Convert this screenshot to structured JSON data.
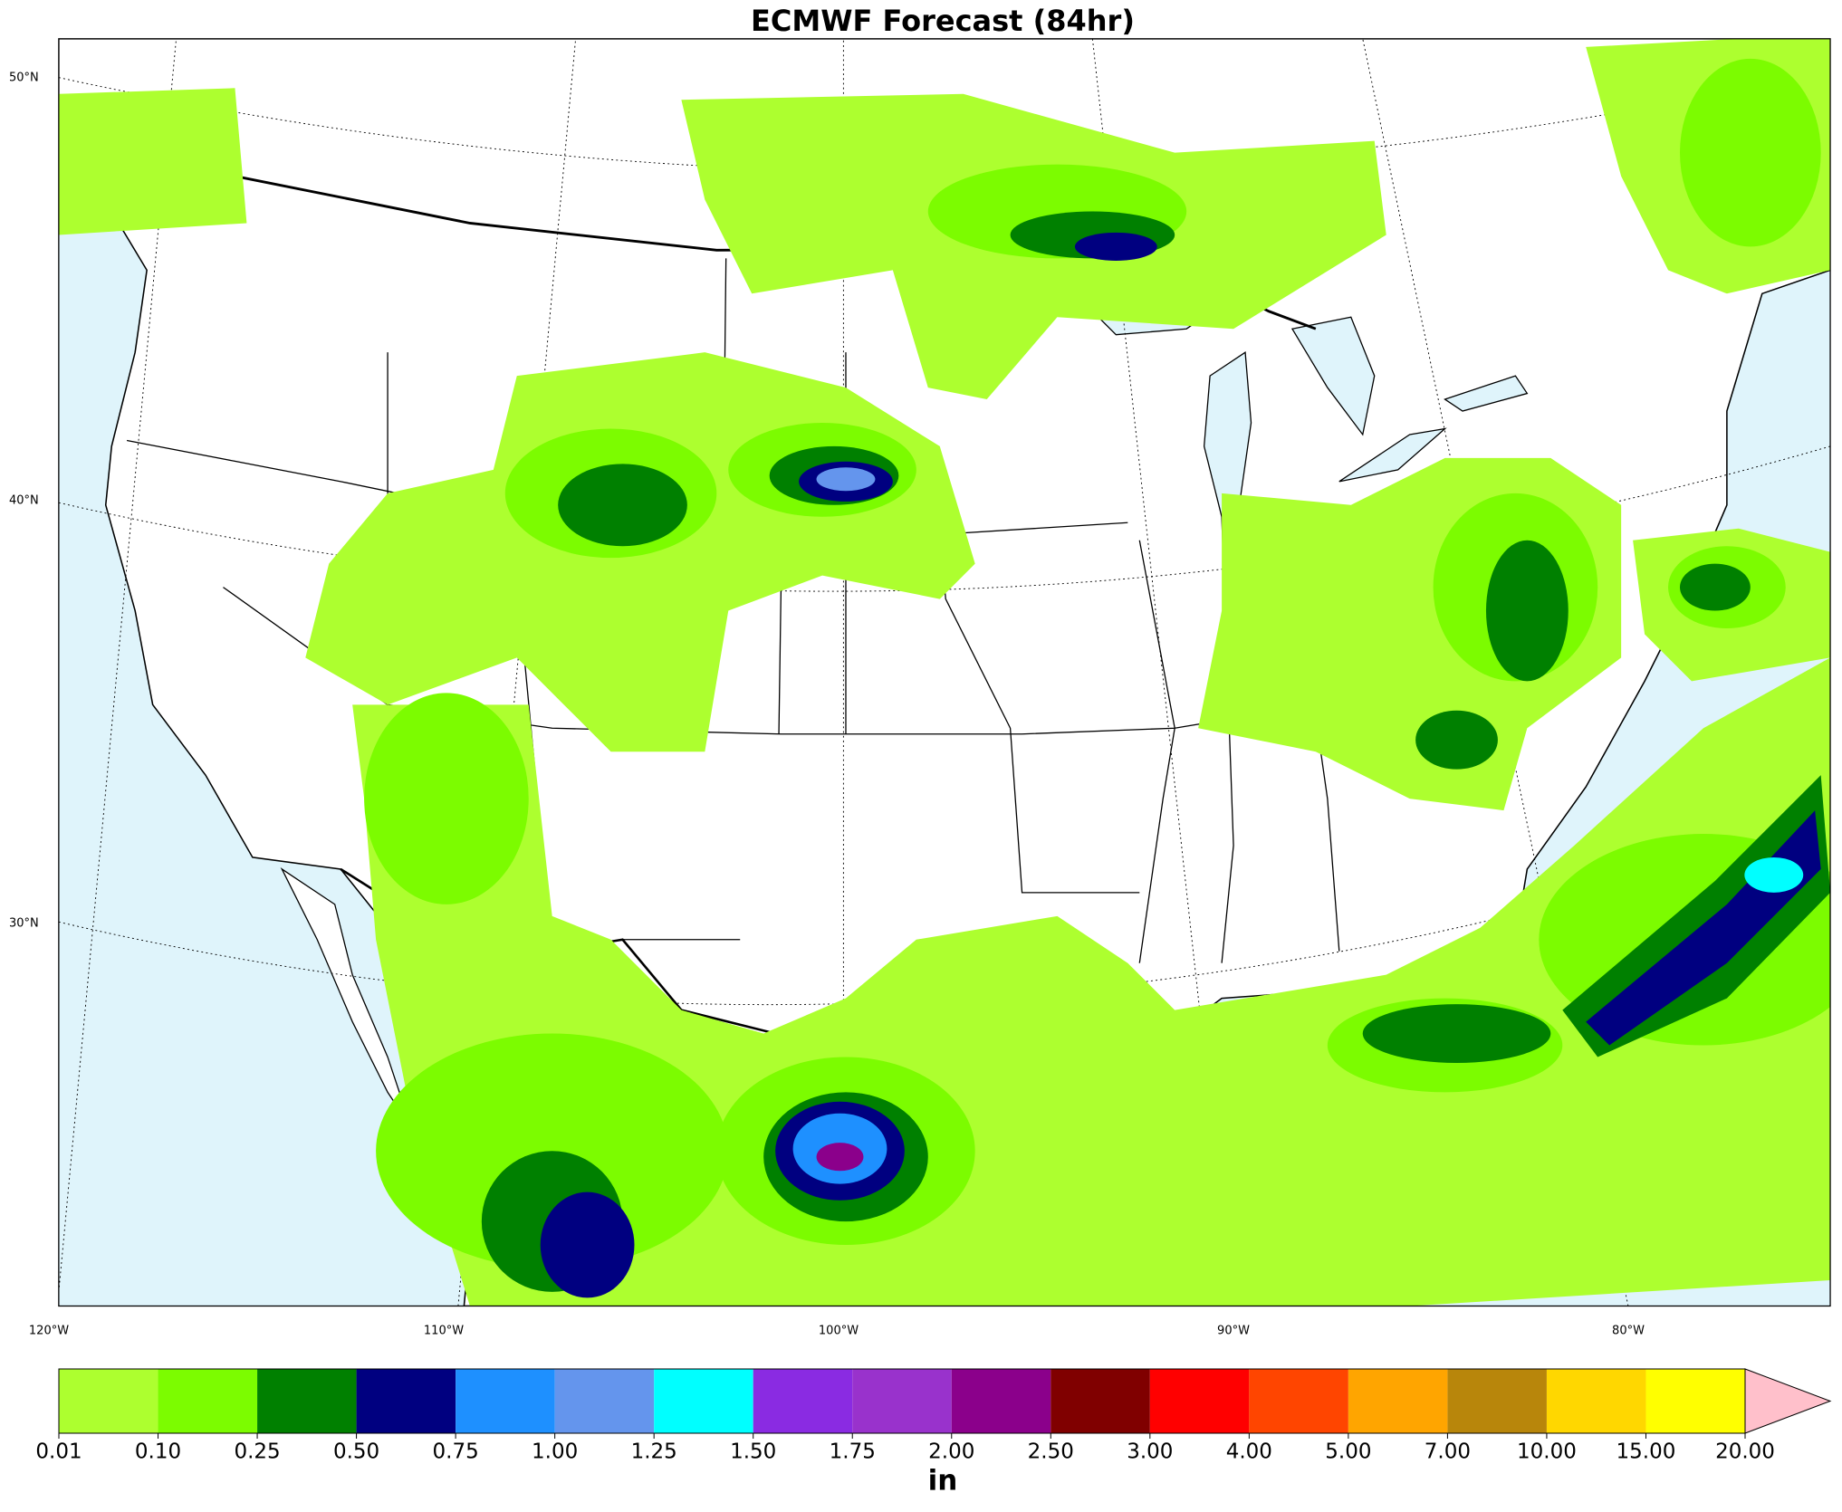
{
  "title": "ECMWF Forecast (84hr)",
  "lat_labels": [
    {
      "value": 50,
      "label": "50°N"
    },
    {
      "value": 40,
      "label": "40°N"
    },
    {
      "value": 30,
      "label": "30°N"
    }
  ],
  "lon_labels": [
    {
      "value": -120,
      "label": "120°W"
    },
    {
      "value": -110,
      "label": "110°W"
    },
    {
      "value": -100,
      "label": "100°W"
    },
    {
      "value": -90,
      "label": "90°W"
    },
    {
      "value": -80,
      "label": "80°W"
    }
  ],
  "colorbar": {
    "unit": "in",
    "levels": [
      {
        "value": 0.01,
        "label": "0.01"
      },
      {
        "value": 0.1,
        "label": "0.10"
      },
      {
        "value": 0.25,
        "label": "0.25"
      },
      {
        "value": 0.5,
        "label": "0.50"
      },
      {
        "value": 0.75,
        "label": "0.75"
      },
      {
        "value": 1,
        "label": "1.00"
      },
      {
        "value": 1.25,
        "label": "1.25"
      },
      {
        "value": 1.5,
        "label": "1.50"
      },
      {
        "value": 1.75,
        "label": "1.75"
      },
      {
        "value": 2,
        "label": "2.00"
      },
      {
        "value": 2.5,
        "label": "2.50"
      },
      {
        "value": 3,
        "label": "3.00"
      },
      {
        "value": 4,
        "label": "4.00"
      },
      {
        "value": 5,
        "label": "5.00"
      },
      {
        "value": 7,
        "label": "7.00"
      },
      {
        "value": 10,
        "label": "10.00"
      },
      {
        "value": 15,
        "label": "15.00"
      },
      {
        "value": 20,
        "label": "20.00"
      }
    ],
    "colors": [
      "#adff2f",
      "#7cfc00",
      "#008000",
      "#000080",
      "#1e90ff",
      "#6495ed",
      "#00ffff",
      "#8a2be2",
      "#9932cc",
      "#8b008b",
      "#800000",
      "#ff0000",
      "#ff4500",
      "#ffa500",
      "#b8860b",
      "#ffd700",
      "#ffff00"
    ],
    "extend_color": "#ffc0cb"
  }
}
